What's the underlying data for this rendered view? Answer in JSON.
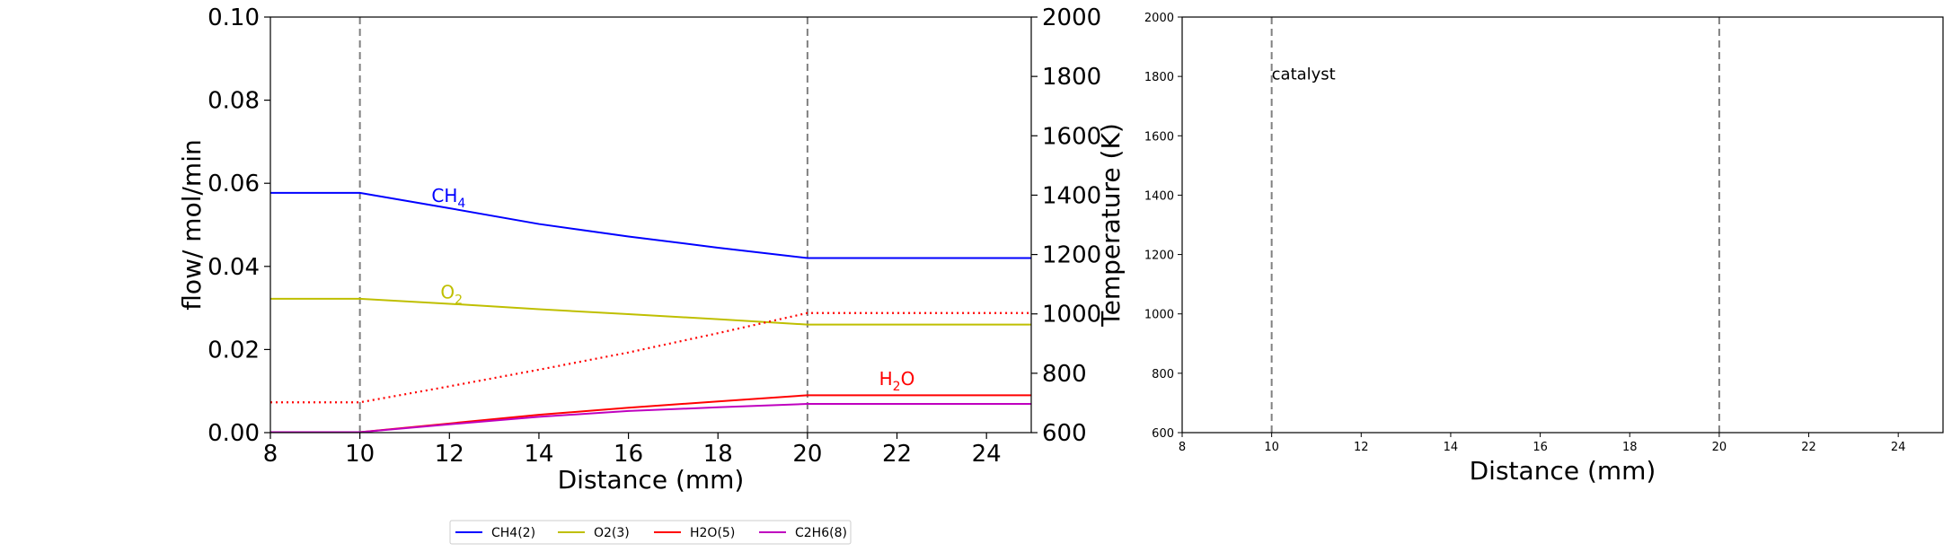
{
  "chart_data": [
    {
      "type": "line",
      "x": [
        8,
        10,
        12,
        14,
        16,
        18,
        20,
        22,
        24,
        25
      ],
      "xlim": [
        8,
        25
      ],
      "xticks": [
        8,
        10,
        12,
        14,
        16,
        18,
        20,
        22,
        24
      ],
      "xlabel": "Distance (mm)",
      "ylabel": "flow/ mol/min",
      "ylim": [
        0.0,
        0.1
      ],
      "yticks": [
        "0.00",
        "0.02",
        "0.04",
        "0.06",
        "0.08",
        "0.10"
      ],
      "ylabel_right": "Temperature (K)",
      "ylim_right": [
        600,
        2000
      ],
      "yticks_right": [
        "600",
        "800",
        "1000",
        "1200",
        "1400",
        "1600",
        "1800",
        "2000"
      ],
      "vlines": [
        10,
        20
      ],
      "series": [
        {
          "name": "CH4(2)",
          "color": "#0000ff",
          "values": [
            0.0577,
            0.0577,
            0.054,
            0.0502,
            0.0472,
            0.0445,
            0.042,
            0.042,
            0.042,
            0.042
          ]
        },
        {
          "name": "O2(3)",
          "color": "#bfbf00",
          "values": [
            0.0322,
            0.0322,
            0.031,
            0.0297,
            0.0285,
            0.0273,
            0.026,
            0.026,
            0.026,
            0.026
          ]
        },
        {
          "name": "H2O(5)",
          "color": "#ff0000",
          "values": [
            0.0001,
            0.0001,
            0.0022,
            0.0043,
            0.006,
            0.0075,
            0.009,
            0.009,
            0.009,
            0.009
          ]
        },
        {
          "name": "C2H6(8)",
          "color": "#bf00bf",
          "values": [
            0.0001,
            0.0001,
            0.002,
            0.0038,
            0.0052,
            0.0061,
            0.0069,
            0.0069,
            0.0069,
            0.0069
          ]
        }
      ],
      "temperature_series": {
        "color": "#ff0000",
        "style": "dotted",
        "axis": "right",
        "values": [
          702,
          702,
          756,
          812,
          870,
          935,
          1003,
          1003,
          1003,
          1003
        ]
      },
      "annotations": [
        {
          "text": "CH",
          "sub": "4",
          "x": 11.6,
          "y": 0.0555,
          "color": "#0000ff"
        },
        {
          "text": "O",
          "sub": "2",
          "x": 11.8,
          "y": 0.0323,
          "color": "#bfbf00"
        },
        {
          "text": "H",
          "sub": "2",
          "tail": "O",
          "x": 21.6,
          "y": 0.0115,
          "color": "#ff0000"
        }
      ],
      "legend": {
        "placement": "bottom-center",
        "entries": [
          "CH4(2)",
          "O2(3)",
          "H2O(5)",
          "C2H6(8)"
        ]
      }
    },
    {
      "type": "line",
      "xlim": [
        8,
        25
      ],
      "xticks": [
        8,
        10,
        12,
        14,
        16,
        18,
        20,
        22,
        24
      ],
      "xlabel": "Distance (mm)",
      "ylim": [
        600,
        2000
      ],
      "yticks": [
        "600",
        "800",
        "1000",
        "1200",
        "1400",
        "1600",
        "1800",
        "2000"
      ],
      "vlines": [
        10,
        20
      ],
      "annotations": [
        {
          "text": "catalyst",
          "x": 10,
          "y": 1790
        }
      ]
    }
  ]
}
